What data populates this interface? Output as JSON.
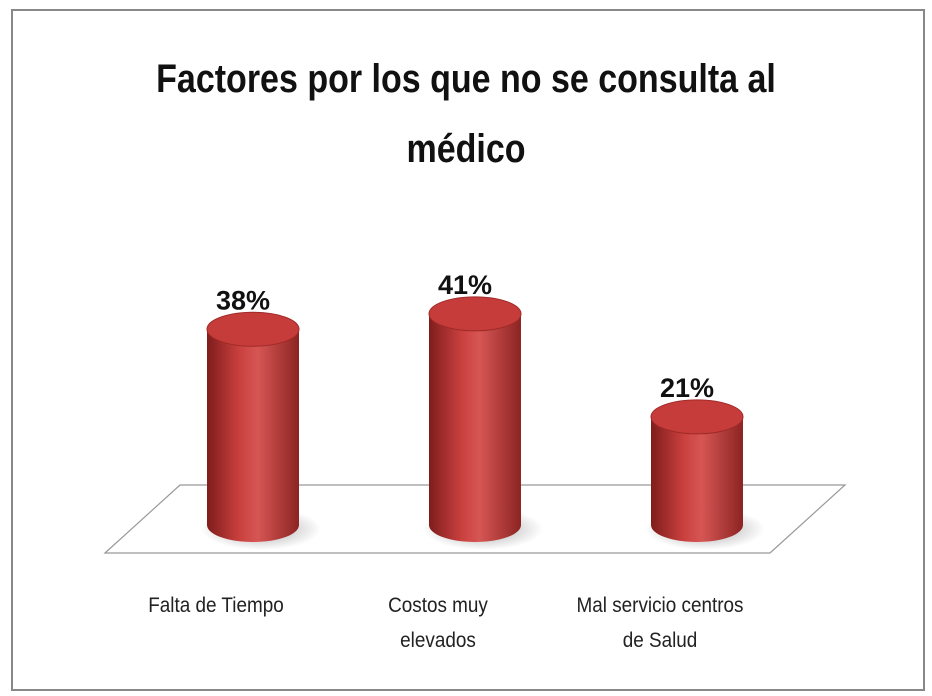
{
  "chart_data": {
    "type": "bar",
    "title": "Factores por los que no se consulta al médico",
    "categories": [
      "Falta de Tiempo",
      "Costos muy elevados",
      "Mal servicio centros de Salud"
    ],
    "values": [
      38,
      41,
      21
    ],
    "value_labels": [
      "38%",
      "41%",
      "21%"
    ],
    "color": "#b3302f"
  }
}
